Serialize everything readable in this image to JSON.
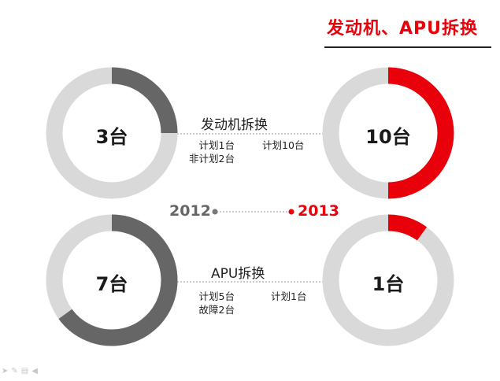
{
  "title": "发动机、APU拆换",
  "colors": {
    "accent": "#e8000b",
    "dark": "#666666",
    "light": "#d9d9d9",
    "text": "#1a1a1a"
  },
  "timeline": {
    "year_left": "2012",
    "year_right": "2013"
  },
  "sections": [
    {
      "title": "发动机拆换",
      "left": {
        "value_label": "3台",
        "fraction": 0.25,
        "notes": [
          "计划1台",
          "非计划2台"
        ]
      },
      "right": {
        "value_label": "10台",
        "fraction": 0.5,
        "notes": [
          "计划10台"
        ]
      }
    },
    {
      "title": "APU拆换",
      "left": {
        "value_label": "7台",
        "fraction": 0.65,
        "notes": [
          "计划5台",
          "故障2台"
        ]
      },
      "right": {
        "value_label": "1台",
        "fraction": 0.1,
        "notes": [
          "计划1台"
        ]
      }
    }
  ],
  "footer_icons": [
    "pointer-icon",
    "pen-icon",
    "menu-icon",
    "slideshow-icon"
  ]
}
